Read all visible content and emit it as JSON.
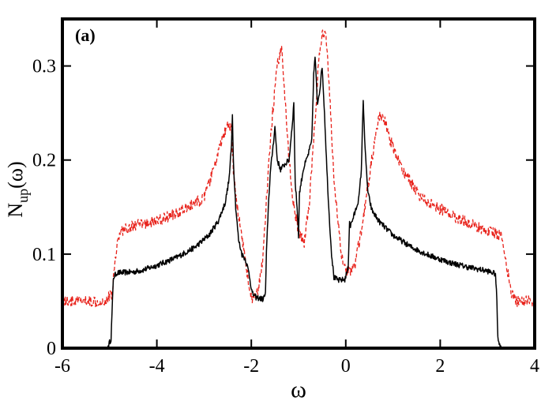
{
  "chart_data": {
    "type": "line",
    "panel_label": "(a)",
    "xlabel": "ω",
    "ylabel": {
      "base": "N",
      "sub": "up",
      "arg": "(ω)"
    },
    "xlim": [
      -6,
      4
    ],
    "ylim": [
      0,
      0.35
    ],
    "xticks": [
      -6,
      -4,
      -2,
      0,
      2,
      4
    ],
    "xtick_labels": [
      "-6",
      "-4",
      "-2",
      "0",
      "2",
      "4"
    ],
    "yticks": [
      0,
      0.1,
      0.2,
      0.3
    ],
    "ytick_labels": [
      "0",
      "0.1",
      "0.2",
      "0.3"
    ],
    "grid": false,
    "legend": "none",
    "series": [
      {
        "color": "#000000",
        "style": "solid",
        "noise": 0.003,
        "points": [
          [
            -6.0,
            0.0
          ],
          [
            -5.05,
            0.0
          ],
          [
            -4.97,
            0.01
          ],
          [
            -4.92,
            0.075
          ],
          [
            -4.85,
            0.08
          ],
          [
            -4.5,
            0.081
          ],
          [
            -4.3,
            0.083
          ],
          [
            -4.0,
            0.088
          ],
          [
            -3.6,
            0.096
          ],
          [
            -3.2,
            0.107
          ],
          [
            -2.9,
            0.12
          ],
          [
            -2.7,
            0.135
          ],
          [
            -2.55,
            0.155
          ],
          [
            -2.47,
            0.18
          ],
          [
            -2.42,
            0.215
          ],
          [
            -2.4,
            0.25
          ],
          [
            -2.38,
            0.2
          ],
          [
            -2.33,
            0.15
          ],
          [
            -2.27,
            0.115
          ],
          [
            -2.2,
            0.1
          ],
          [
            -2.12,
            0.094
          ],
          [
            -2.05,
            0.08
          ],
          [
            -1.98,
            0.058
          ],
          [
            -1.9,
            0.054
          ],
          [
            -1.75,
            0.052
          ],
          [
            -1.7,
            0.058
          ],
          [
            -1.68,
            0.1
          ],
          [
            -1.64,
            0.15
          ],
          [
            -1.6,
            0.185
          ],
          [
            -1.55,
            0.21
          ],
          [
            -1.5,
            0.235
          ],
          [
            -1.45,
            0.2
          ],
          [
            -1.38,
            0.19
          ],
          [
            -1.3,
            0.195
          ],
          [
            -1.2,
            0.2
          ],
          [
            -1.13,
            0.24
          ],
          [
            -1.1,
            0.26
          ],
          [
            -1.07,
            0.175
          ],
          [
            -1.03,
            0.15
          ],
          [
            -1.0,
            0.12
          ],
          [
            -0.98,
            0.165
          ],
          [
            -0.9,
            0.19
          ],
          [
            -0.8,
            0.205
          ],
          [
            -0.72,
            0.22
          ],
          [
            -0.68,
            0.29
          ],
          [
            -0.65,
            0.31
          ],
          [
            -0.6,
            0.26
          ],
          [
            -0.55,
            0.275
          ],
          [
            -0.5,
            0.3
          ],
          [
            -0.45,
            0.25
          ],
          [
            -0.4,
            0.19
          ],
          [
            -0.35,
            0.14
          ],
          [
            -0.3,
            0.1
          ],
          [
            -0.25,
            0.075
          ],
          [
            -0.15,
            0.072
          ],
          [
            -0.02,
            0.073
          ],
          [
            0.05,
            0.085
          ],
          [
            0.08,
            0.135
          ],
          [
            0.1,
            0.13
          ],
          [
            0.2,
            0.145
          ],
          [
            0.28,
            0.16
          ],
          [
            0.33,
            0.19
          ],
          [
            0.37,
            0.265
          ],
          [
            0.41,
            0.21
          ],
          [
            0.47,
            0.165
          ],
          [
            0.55,
            0.147
          ],
          [
            0.7,
            0.135
          ],
          [
            1.0,
            0.12
          ],
          [
            1.4,
            0.107
          ],
          [
            1.8,
            0.098
          ],
          [
            2.2,
            0.091
          ],
          [
            2.6,
            0.086
          ],
          [
            3.0,
            0.082
          ],
          [
            3.17,
            0.079
          ],
          [
            3.2,
            0.05
          ],
          [
            3.22,
            0.01
          ],
          [
            3.3,
            0.0
          ],
          [
            4.0,
            0.0
          ]
        ]
      },
      {
        "color": "#e8231c",
        "style": "dashed",
        "noise": 0.006,
        "points": [
          [
            -6.0,
            0.05
          ],
          [
            -5.1,
            0.05
          ],
          [
            -4.95,
            0.058
          ],
          [
            -4.85,
            0.11
          ],
          [
            -4.75,
            0.125
          ],
          [
            -4.5,
            0.13
          ],
          [
            -4.0,
            0.135
          ],
          [
            -3.5,
            0.145
          ],
          [
            -3.0,
            0.16
          ],
          [
            -2.8,
            0.19
          ],
          [
            -2.6,
            0.225
          ],
          [
            -2.5,
            0.235
          ],
          [
            -2.42,
            0.232
          ],
          [
            -2.38,
            0.19
          ],
          [
            -2.3,
            0.15
          ],
          [
            -2.2,
            0.12
          ],
          [
            -2.1,
            0.085
          ],
          [
            -2.02,
            0.055
          ],
          [
            -1.95,
            0.051
          ],
          [
            -1.85,
            0.06
          ],
          [
            -1.75,
            0.1
          ],
          [
            -1.65,
            0.18
          ],
          [
            -1.55,
            0.25
          ],
          [
            -1.45,
            0.3
          ],
          [
            -1.35,
            0.32
          ],
          [
            -1.28,
            0.26
          ],
          [
            -1.2,
            0.2
          ],
          [
            -1.1,
            0.15
          ],
          [
            -0.98,
            0.12
          ],
          [
            -0.88,
            0.113
          ],
          [
            -0.78,
            0.15
          ],
          [
            -0.68,
            0.22
          ],
          [
            -0.58,
            0.3
          ],
          [
            -0.5,
            0.335
          ],
          [
            -0.42,
            0.33
          ],
          [
            -0.35,
            0.28
          ],
          [
            -0.25,
            0.18
          ],
          [
            -0.1,
            0.1
          ],
          [
            0.05,
            0.08
          ],
          [
            0.2,
            0.09
          ],
          [
            0.35,
            0.13
          ],
          [
            0.55,
            0.2
          ],
          [
            0.7,
            0.245
          ],
          [
            0.8,
            0.245
          ],
          [
            0.95,
            0.22
          ],
          [
            1.2,
            0.19
          ],
          [
            1.6,
            0.16
          ],
          [
            2.0,
            0.148
          ],
          [
            2.5,
            0.135
          ],
          [
            3.0,
            0.125
          ],
          [
            3.3,
            0.12
          ],
          [
            3.5,
            0.06
          ],
          [
            3.6,
            0.05
          ],
          [
            4.0,
            0.05
          ]
        ]
      }
    ]
  }
}
